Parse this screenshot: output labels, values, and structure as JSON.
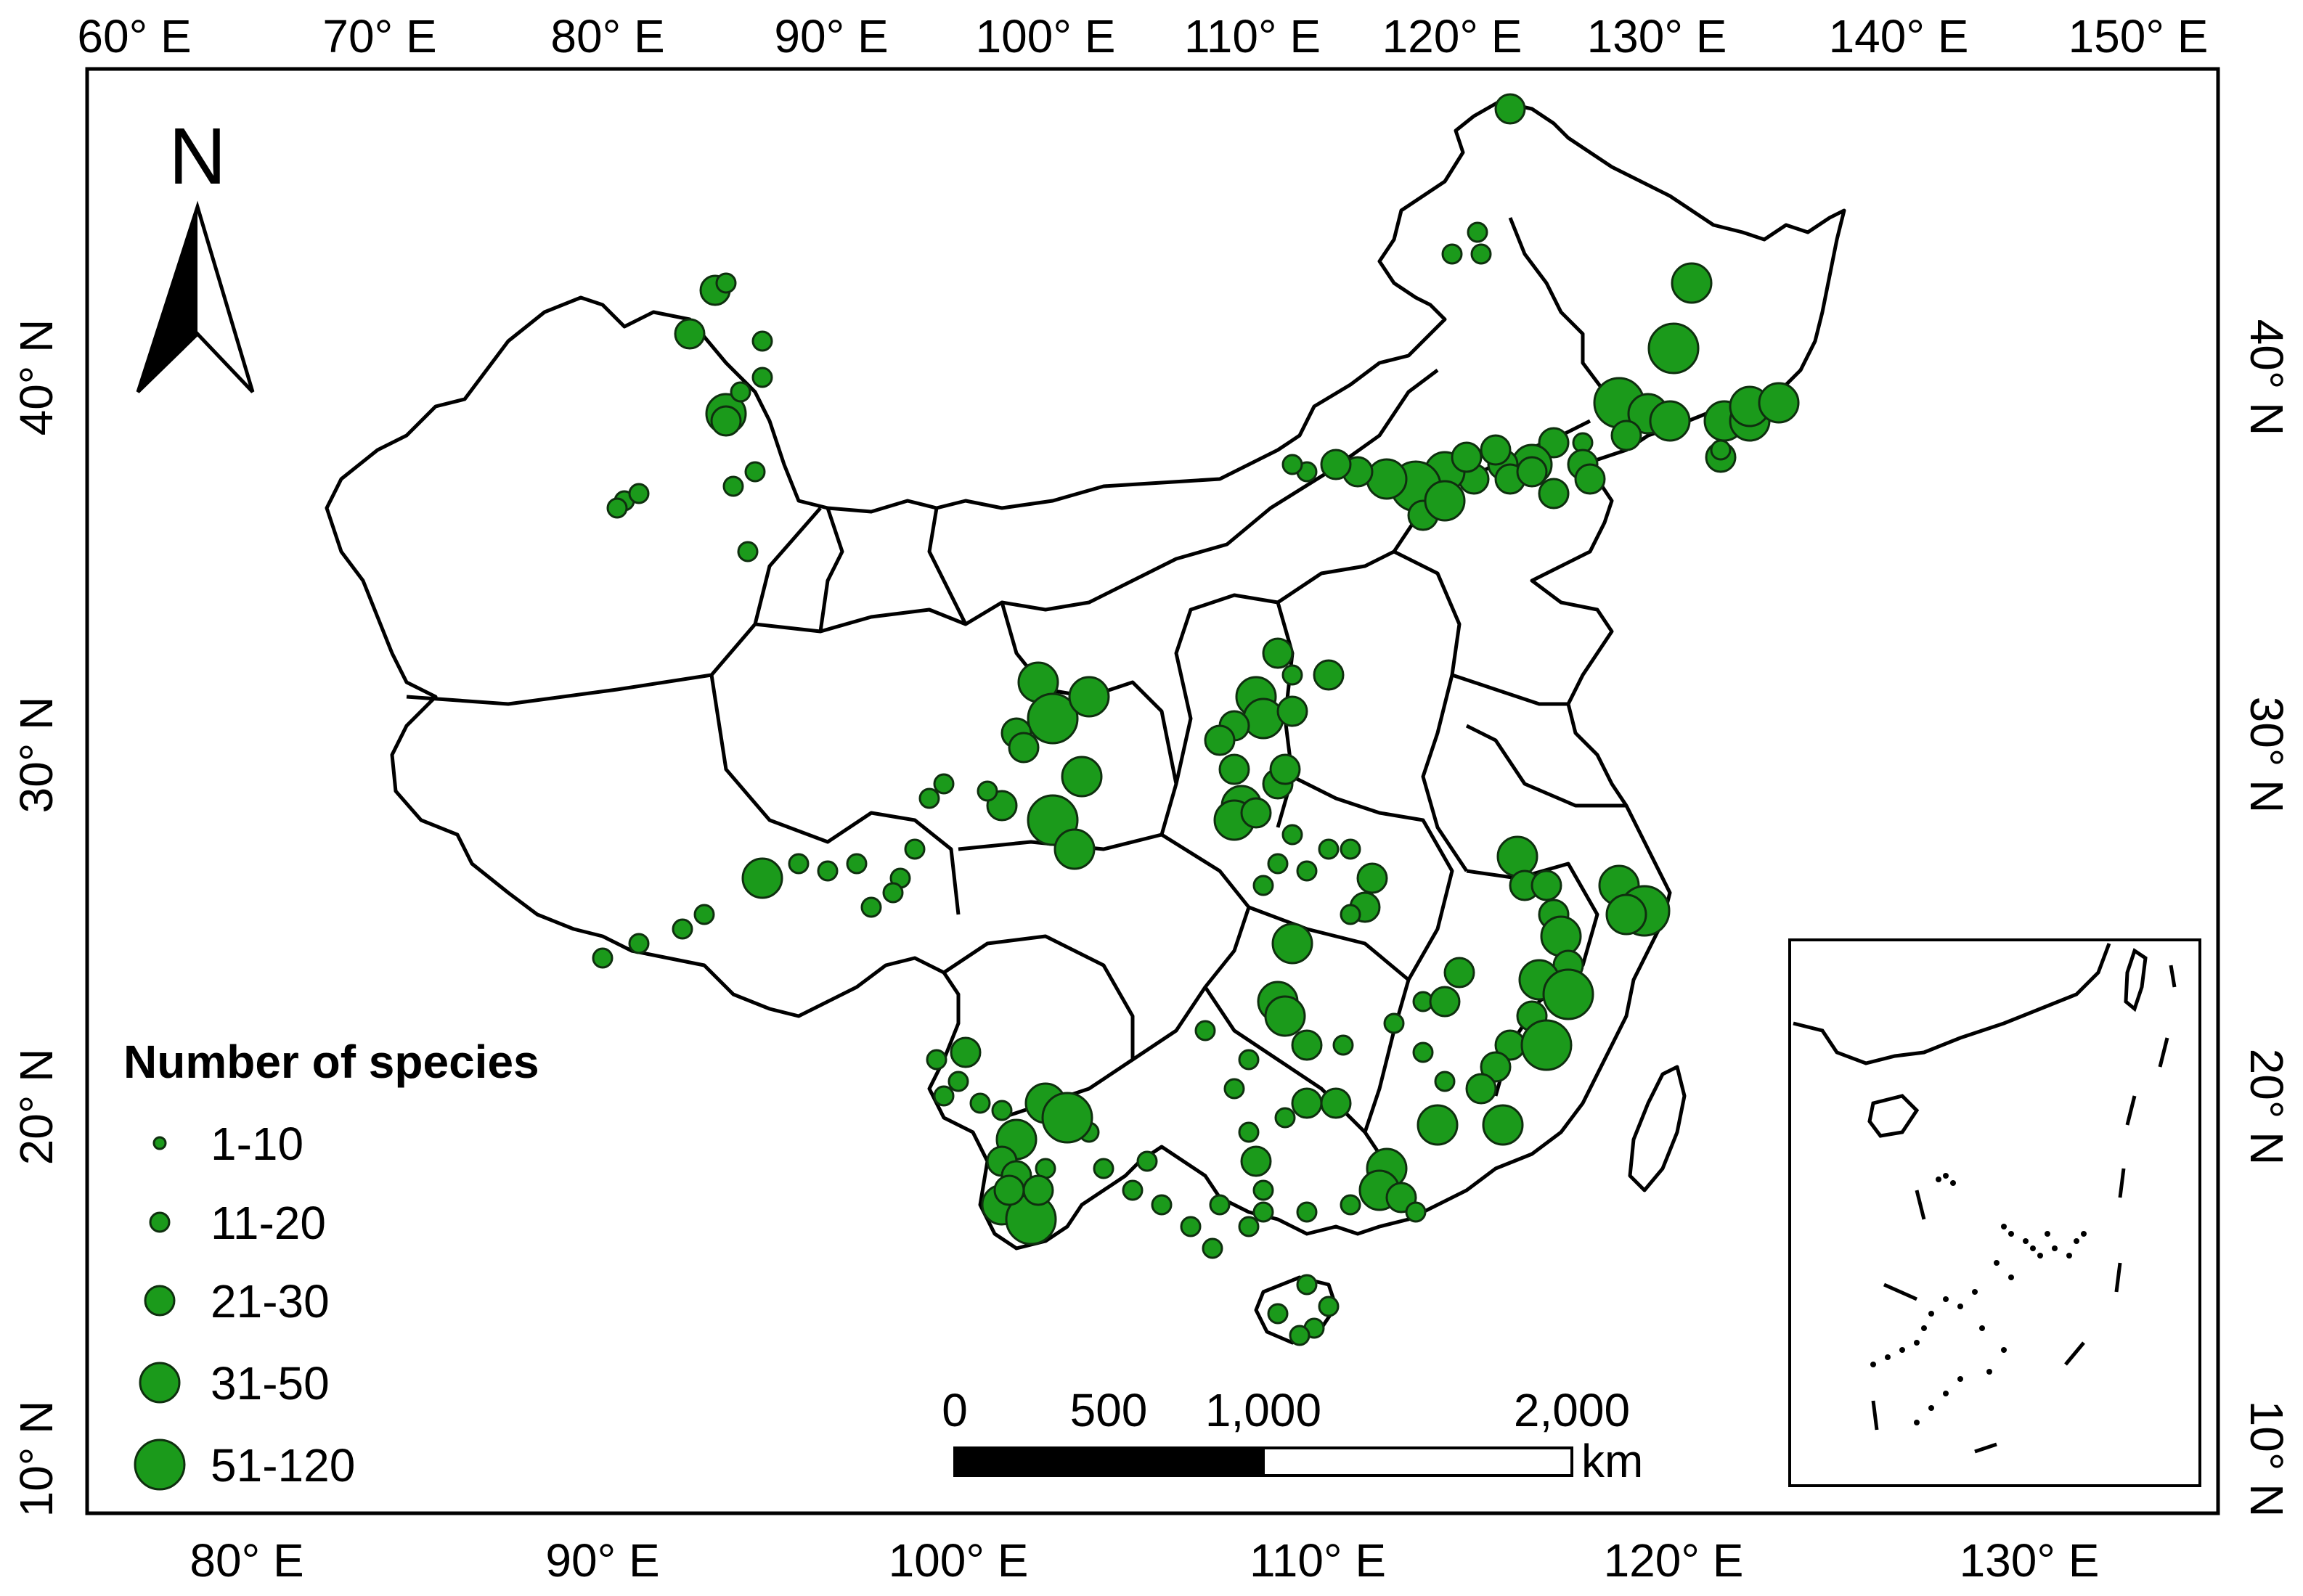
{
  "map": {
    "top_ticks": [
      "60° E",
      "70° E",
      "80° E",
      "90° E",
      "100° E",
      "110° E",
      "120° E",
      "130° E",
      "140° E",
      "150° E"
    ],
    "bottom_ticks": [
      "80° E",
      "90° E",
      "100° E",
      "110° E",
      "120° E",
      "130° E"
    ],
    "left_ticks": [
      "40° N",
      "30° N",
      "20° N",
      "10° N"
    ],
    "right_ticks": [
      "40° N",
      "30° N",
      "20° N",
      "10° N"
    ],
    "north_arrow": {
      "label": "N",
      "icon": "north-arrow-icon"
    },
    "legend": {
      "title": "Number of species",
      "items": [
        {
          "label": "1-10"
        },
        {
          "label": "11-20"
        },
        {
          "label": "21-30"
        },
        {
          "label": "31-50"
        },
        {
          "label": "51-120"
        }
      ]
    },
    "scale_bar": {
      "labels": [
        "0",
        "500",
        "1,000",
        "2,000"
      ],
      "unit": "km"
    },
    "colors": {
      "site_fill": "#1b9a1b",
      "site_stroke": "#0f2f0f",
      "boundary": "#000000"
    },
    "inset": {
      "icon": "south-china-sea-inset"
    }
  }
}
